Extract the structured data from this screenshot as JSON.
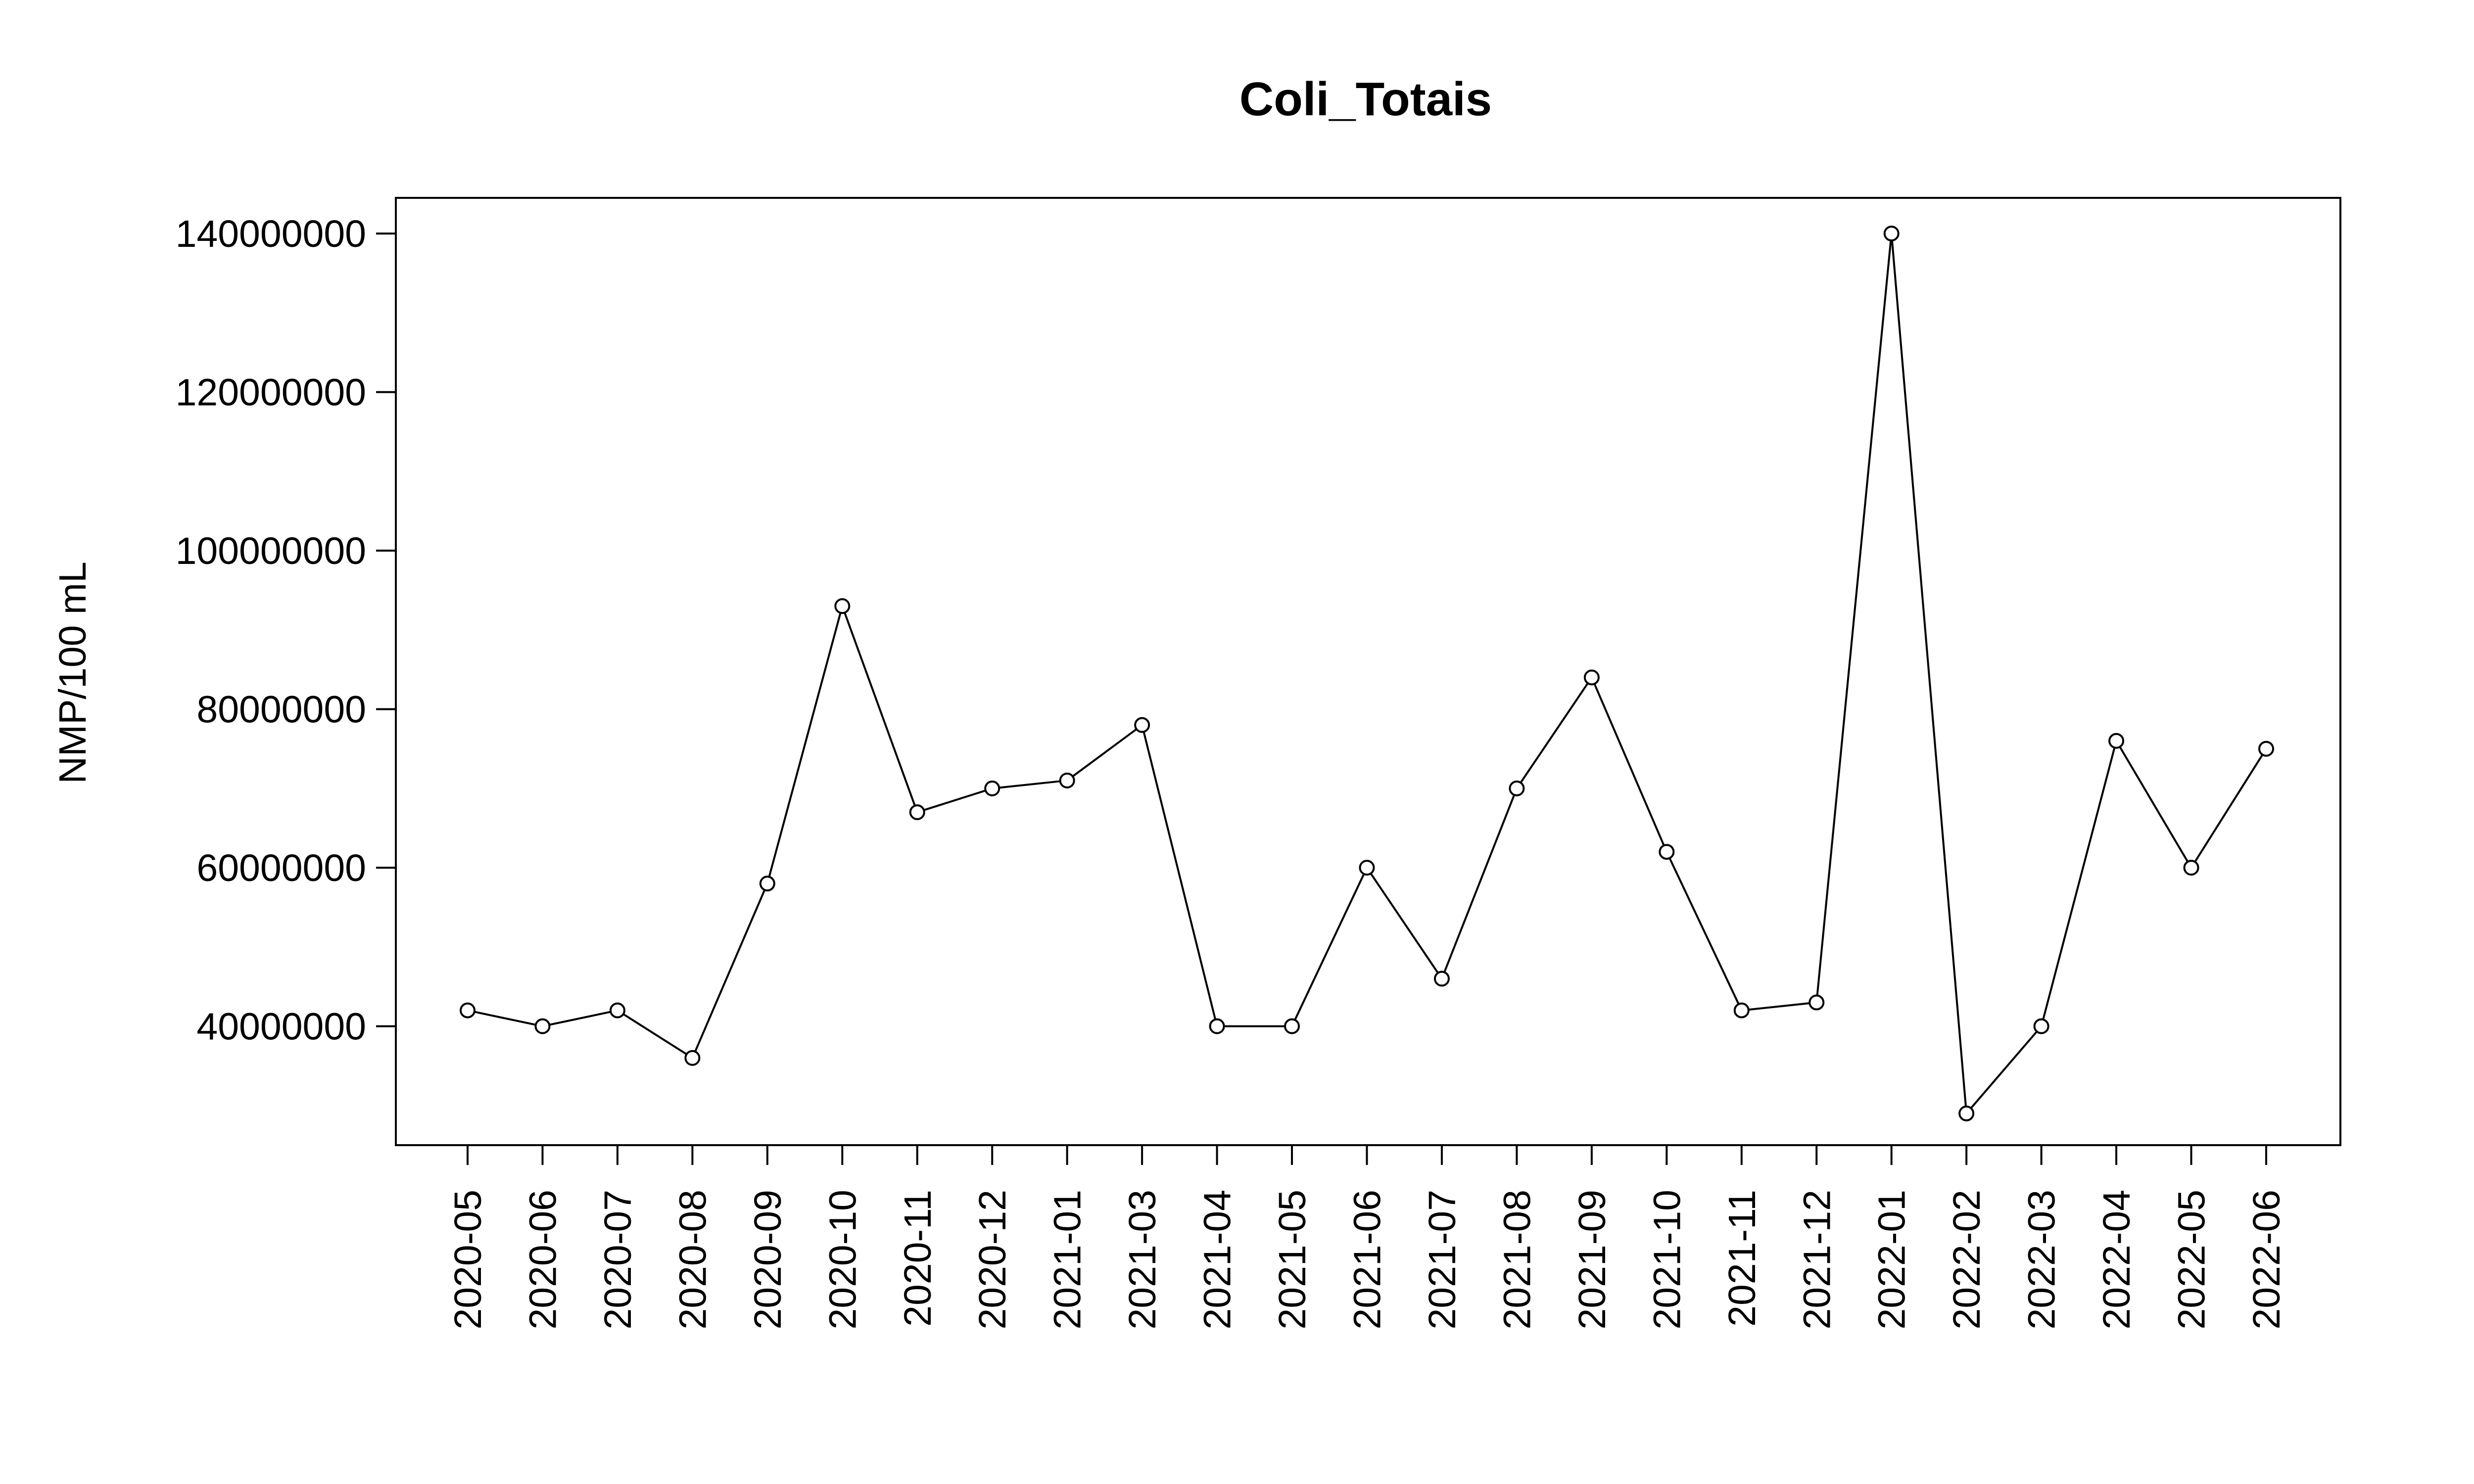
{
  "chart_data": {
    "type": "line",
    "title": "Coli_Totais",
    "xlabel": "",
    "ylabel": "NMP/100 mL",
    "x": [
      "2020-05",
      "2020-06",
      "2020-07",
      "2020-08",
      "2020-09",
      "2020-10",
      "2020-11",
      "2020-12",
      "2021-01",
      "2021-03",
      "2021-04",
      "2021-05",
      "2021-06",
      "2021-07",
      "2021-08",
      "2021-09",
      "2021-10",
      "2021-11",
      "2021-12",
      "2022-01",
      "2022-02",
      "2022-03",
      "2022-04",
      "2022-05",
      "2022-06"
    ],
    "values": [
      42000000,
      40000000,
      42000000,
      36000000,
      58000000,
      93000000,
      67000000,
      70000000,
      71000000,
      78000000,
      40000000,
      40000000,
      60000000,
      46000000,
      70000000,
      84000000,
      62000000,
      42000000,
      43000000,
      140000000,
      29000000,
      40000000,
      76000000,
      60000000,
      75000000
    ],
    "y_ticks": [
      "40000000",
      "60000000",
      "80000000",
      "100000000",
      "120000000",
      "140000000"
    ],
    "ylim": [
      25000000,
      144500000
    ],
    "series_color": "#000000",
    "marker": "open-circle",
    "grid": false,
    "legend": "none"
  }
}
